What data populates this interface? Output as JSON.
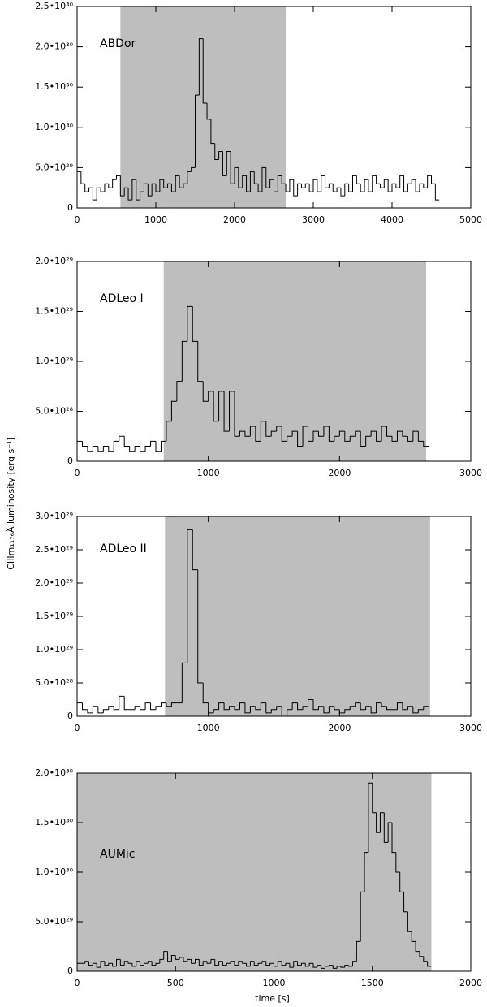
{
  "ylabel": "CIIIm₁₁₇₆Å luminosity [erg s⁻¹]",
  "chart_data": [
    {
      "type": "histogram",
      "label": "ABDor",
      "color": "#000000",
      "shade_color": "#bebebe",
      "shade": [
        550,
        2650
      ],
      "xlim": [
        0,
        5000
      ],
      "xticks": [
        0,
        1000,
        2000,
        3000,
        4000,
        5000
      ],
      "ylim": [
        0,
        2.5e+30
      ],
      "yticks": [
        0,
        {
          "value": 5e+29,
          "label": "5.0•10²⁹"
        },
        {
          "value": 1e+30,
          "label": "1.0•10³⁰"
        },
        {
          "value": 1.5e+30,
          "label": "1.5•10³⁰"
        },
        {
          "value": 2e+30,
          "label": "2.0•10³⁰"
        },
        {
          "value": 2.5e+30,
          "label": "2.5•10³⁰"
        }
      ],
      "bins": [
        0,
        50,
        100,
        150,
        200,
        250,
        300,
        350,
        400,
        450,
        500,
        550,
        600,
        650,
        700,
        750,
        800,
        850,
        900,
        950,
        1000,
        1050,
        1100,
        1150,
        1200,
        1250,
        1300,
        1350,
        1400,
        1450,
        1500,
        1550,
        1600,
        1650,
        1700,
        1750,
        1800,
        1850,
        1900,
        1950,
        2000,
        2050,
        2100,
        2150,
        2200,
        2250,
        2300,
        2350,
        2400,
        2450,
        2500,
        2550,
        2600,
        2650,
        2700,
        2750,
        2800,
        2850,
        2900,
        2950,
        3000,
        3050,
        3100,
        3150,
        3200,
        3250,
        3300,
        3350,
        3400,
        3450,
        3500,
        3550,
        3600,
        3650,
        3700,
        3750,
        3800,
        3850,
        3900,
        3950,
        4000,
        4050,
        4100,
        4150,
        4200,
        4250,
        4300,
        4350,
        4400,
        4450,
        4500,
        4550,
        4600
      ],
      "values": [
        4.5e+29,
        3e+29,
        2e+29,
        2.5e+29,
        1e+29,
        2.5e+29,
        2e+29,
        3e+29,
        2.5e+29,
        3.5e+29,
        4e+29,
        1.5e+29,
        2.5e+29,
        1e+29,
        3.5e+29,
        1e+29,
        2e+29,
        3e+29,
        1.5e+29,
        3e+29,
        2e+29,
        3.5e+29,
        2.5e+29,
        3e+29,
        2e+29,
        4e+29,
        2.5e+29,
        3e+29,
        4.5e+29,
        5e+29,
        1.4e+30,
        2.1e+30,
        1.3e+30,
        1.1e+30,
        8e+29,
        6e+29,
        7e+29,
        4e+29,
        7e+29,
        3e+29,
        5e+29,
        2.5e+29,
        4e+29,
        2e+29,
        4.5e+29,
        3e+29,
        2e+29,
        5e+29,
        2.5e+29,
        3.5e+29,
        2e+29,
        4e+29,
        3e+29,
        2e+29,
        3.5e+29,
        1.5e+29,
        3e+29,
        2.5e+29,
        3e+29,
        2e+29,
        3.5e+29,
        2e+29,
        4e+29,
        2.5e+29,
        3e+29,
        2e+29,
        2.5e+29,
        1.5e+29,
        3e+29,
        2e+29,
        4e+29,
        3e+29,
        2e+29,
        3.5e+29,
        2e+29,
        4e+29,
        3e+29,
        2.5e+29,
        3.5e+29,
        2e+29,
        3e+29,
        2.5e+29,
        4e+29,
        2e+29,
        3e+29,
        3.5e+29,
        2e+29,
        3e+29,
        2.5e+29,
        4e+29,
        3e+29,
        1e+29
      ]
    },
    {
      "type": "histogram",
      "label": "ADLeo I",
      "color": "#000000",
      "shade_color": "#bebebe",
      "shade": [
        660,
        2660
      ],
      "xlim": [
        0,
        3000
      ],
      "xticks": [
        0,
        1000,
        2000,
        3000
      ],
      "ylim": [
        0,
        2e+29
      ],
      "yticks": [
        0,
        {
          "value": 5e+28,
          "label": "5.0•10²⁸"
        },
        {
          "value": 1e+29,
          "label": "1.0•10²⁹"
        },
        {
          "value": 1.5e+29,
          "label": "1.5•10²⁹"
        },
        {
          "value": 2e+29,
          "label": "2.0•10²⁹"
        }
      ],
      "bins": [
        0,
        40,
        80,
        120,
        160,
        200,
        240,
        280,
        320,
        360,
        400,
        440,
        480,
        520,
        560,
        600,
        640,
        680,
        720,
        760,
        800,
        840,
        880,
        920,
        960,
        1000,
        1040,
        1080,
        1120,
        1160,
        1200,
        1240,
        1280,
        1320,
        1360,
        1400,
        1440,
        1480,
        1520,
        1560,
        1600,
        1640,
        1680,
        1720,
        1760,
        1800,
        1840,
        1880,
        1920,
        1960,
        2000,
        2040,
        2080,
        2120,
        2160,
        2200,
        2240,
        2280,
        2320,
        2360,
        2400,
        2440,
        2480,
        2520,
        2560,
        2600,
        2640,
        2680
      ],
      "values": [
        2e+28,
        1.5e+28,
        1e+28,
        1.5e+28,
        1e+28,
        1.5e+28,
        1e+28,
        2e+28,
        2.5e+28,
        1.5e+28,
        1e+28,
        1.5e+28,
        1e+28,
        1.5e+28,
        2e+28,
        1e+28,
        2e+28,
        4e+28,
        6e+28,
        8e+28,
        1.2e+29,
        1.55e+29,
        1.2e+29,
        8e+28,
        6e+28,
        7e+28,
        4e+28,
        7e+28,
        3e+28,
        7e+28,
        2.5e+28,
        3e+28,
        2.5e+28,
        3.5e+28,
        2e+28,
        4e+28,
        2.5e+28,
        3e+28,
        3.5e+28,
        2e+28,
        2.5e+28,
        3e+28,
        1.5e+28,
        3.5e+28,
        2e+28,
        3e+28,
        2.5e+28,
        3.5e+28,
        2e+28,
        2.5e+28,
        3e+28,
        2e+28,
        2.5e+28,
        3e+28,
        1.5e+28,
        2.5e+28,
        3e+28,
        2e+28,
        3.5e+28,
        2.5e+28,
        2e+28,
        3e+28,
        2.5e+28,
        2e+28,
        3e+28,
        2e+28,
        1.5e+28
      ]
    },
    {
      "type": "histogram",
      "label": "ADLeo II",
      "color": "#000000",
      "shade_color": "#bebebe",
      "shade": [
        670,
        2690
      ],
      "xlim": [
        0,
        3000
      ],
      "xticks": [
        0,
        1000,
        2000,
        3000
      ],
      "ylim": [
        0,
        3e+29
      ],
      "yticks": [
        0,
        {
          "value": 5e+28,
          "label": "5.0•10²⁸"
        },
        {
          "value": 1e+29,
          "label": "1.0•10²⁹"
        },
        {
          "value": 1.5e+29,
          "label": "1.5•10²⁹"
        },
        {
          "value": 2e+29,
          "label": "2.0•10²⁹"
        },
        {
          "value": 2.5e+29,
          "label": "2.5•10²⁹"
        },
        {
          "value": 3e+29,
          "label": "3.0•10²⁹"
        }
      ],
      "bins": [
        0,
        40,
        80,
        120,
        160,
        200,
        240,
        280,
        320,
        360,
        400,
        440,
        480,
        520,
        560,
        600,
        640,
        680,
        720,
        760,
        800,
        840,
        880,
        920,
        960,
        1000,
        1040,
        1080,
        1120,
        1160,
        1200,
        1240,
        1280,
        1320,
        1360,
        1400,
        1440,
        1480,
        1520,
        1560,
        1600,
        1640,
        1680,
        1720,
        1760,
        1800,
        1840,
        1880,
        1920,
        1960,
        2000,
        2040,
        2080,
        2120,
        2160,
        2200,
        2240,
        2280,
        2320,
        2360,
        2400,
        2440,
        2480,
        2520,
        2560,
        2600,
        2640,
        2680
      ],
      "values": [
        2e+28,
        1e+28,
        5e+27,
        1.5e+28,
        5e+27,
        1e+28,
        1.5e+28,
        1e+28,
        3e+28,
        1e+28,
        1e+28,
        1.5e+28,
        1e+28,
        2e+28,
        1e+28,
        1.5e+28,
        2e+28,
        1.5e+28,
        2e+28,
        2e+28,
        8e+28,
        2.8e+29,
        2.2e+29,
        5e+28,
        2e+28,
        5e+27,
        1e+28,
        2e+28,
        1e+28,
        1.5e+28,
        1e+28,
        2e+28,
        5e+27,
        1.5e+28,
        1e+28,
        2e+28,
        5e+27,
        1e+28,
        1.5e+28,
        0,
        1e+28,
        2e+28,
        1e+28,
        1.5e+28,
        2.5e+28,
        1e+28,
        1.5e+28,
        5e+27,
        1.5e+28,
        1e+28,
        5e+27,
        1e+28,
        1.5e+28,
        2e+28,
        1e+28,
        1.5e+28,
        5e+27,
        2e+28,
        1.5e+28,
        1e+28,
        1e+28,
        2e+28,
        1e+28,
        1.5e+28,
        5e+27,
        1e+28,
        1.5e+28
      ]
    },
    {
      "type": "histogram",
      "label": "AUMic",
      "color": "#000000",
      "shade_color": "#bebebe",
      "shade": [
        0,
        1800
      ],
      "xlabel": "time [s]",
      "xlim": [
        0,
        2000
      ],
      "xticks": [
        0,
        500,
        1000,
        1500,
        2000
      ],
      "ylim": [
        0,
        2e+30
      ],
      "yticks": [
        0,
        {
          "value": 5e+29,
          "label": "5.0•10²⁹"
        },
        {
          "value": 1e+30,
          "label": "1.0•10³⁰"
        },
        {
          "value": 1.5e+30,
          "label": "1.5•10³⁰"
        },
        {
          "value": 2e+30,
          "label": "2.0•10³⁰"
        }
      ],
      "bins": [
        0,
        20,
        40,
        60,
        80,
        100,
        120,
        140,
        160,
        180,
        200,
        220,
        240,
        260,
        280,
        300,
        320,
        340,
        360,
        380,
        400,
        420,
        440,
        460,
        480,
        500,
        520,
        540,
        560,
        580,
        600,
        620,
        640,
        660,
        680,
        700,
        720,
        740,
        760,
        780,
        800,
        820,
        840,
        860,
        880,
        900,
        920,
        940,
        960,
        980,
        1000,
        1020,
        1040,
        1060,
        1080,
        1100,
        1120,
        1140,
        1160,
        1180,
        1200,
        1220,
        1240,
        1260,
        1280,
        1300,
        1320,
        1340,
        1360,
        1380,
        1400,
        1420,
        1440,
        1460,
        1480,
        1500,
        1520,
        1540,
        1560,
        1580,
        1600,
        1620,
        1640,
        1660,
        1680,
        1700,
        1720,
        1740,
        1760,
        1780,
        1800
      ],
      "values": [
        8e+28,
        8e+28,
        1e+29,
        6e+28,
        8e+28,
        4e+28,
        1e+29,
        6e+28,
        8e+28,
        5e+28,
        1.2e+29,
        6e+28,
        1e+29,
        8e+28,
        5e+28,
        1e+29,
        6e+28,
        8e+28,
        1e+29,
        6e+28,
        8e+28,
        1.2e+29,
        2e+29,
        1e+29,
        1.6e+29,
        1.2e+29,
        1.4e+29,
        1e+29,
        1.2e+29,
        8e+28,
        1.2e+29,
        6e+28,
        1e+29,
        8e+28,
        1.2e+29,
        6e+28,
        1e+29,
        6e+28,
        8e+28,
        1e+29,
        6e+28,
        1e+29,
        8e+28,
        5e+28,
        1e+29,
        6e+28,
        8e+28,
        1e+29,
        6e+28,
        8e+28,
        5e+28,
        1e+29,
        6e+28,
        8e+28,
        4e+28,
        1e+29,
        6e+28,
        8e+28,
        5e+28,
        8e+28,
        4e+28,
        6e+28,
        3e+28,
        5e+28,
        6e+28,
        3e+28,
        5e+28,
        4e+28,
        6e+28,
        5e+28,
        1e+29,
        3e+29,
        8e+29,
        1.2e+30,
        1.9e+30,
        1.6e+30,
        1.4e+30,
        1.6e+30,
        1.3e+30,
        1.5e+30,
        1.2e+30,
        1e+30,
        8e+29,
        6e+29,
        4e+29,
        3e+29,
        2e+29,
        1.5e+29,
        1e+29,
        5e+28
      ]
    }
  ]
}
